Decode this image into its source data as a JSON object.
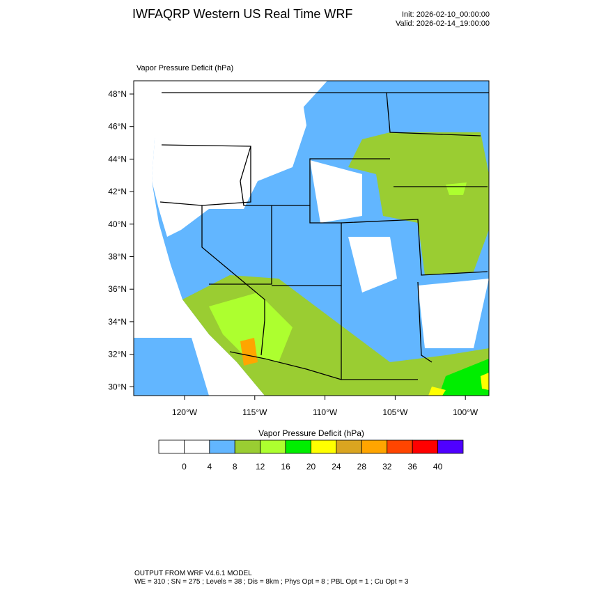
{
  "header": {
    "title": "IWFAQRP Western US Real Time WRF",
    "init": "Init: 2026-02-10_00:00:00",
    "valid": "Valid: 2026-02-14_19:00:00"
  },
  "map": {
    "field_label": "Vapor Pressure Deficit   (hPa)",
    "lat_labels": [
      "48°N",
      "46°N",
      "44°N",
      "42°N",
      "40°N",
      "38°N",
      "36°N",
      "34°N",
      "32°N",
      "30°N"
    ],
    "lon_labels": [
      "120°W",
      "115°W",
      "110°W",
      "105°W",
      "100°W"
    ]
  },
  "colorbar": {
    "title": "Vapor Pressure Deficit  (hPa)",
    "colors": [
      "#ffffff",
      "#ffffff",
      "#62b6ff",
      "#9acd32",
      "#adff2f",
      "#00ee00",
      "#ffff00",
      "#daa520",
      "#ffa500",
      "#ff4500",
      "#ff0000",
      "#4f00ff"
    ],
    "labels": [
      "0",
      "4",
      "8",
      "12",
      "16",
      "20",
      "24",
      "28",
      "32",
      "36",
      "40"
    ]
  },
  "footer": {
    "line1": "OUTPUT FROM WRF V4.6.1 MODEL",
    "line2": "WE = 310 ; SN = 275 ; Levels = 38 ; Dis = 8km ; Phys Opt = 8 ; PBL Opt = 1 ; Cu Opt = 3"
  }
}
